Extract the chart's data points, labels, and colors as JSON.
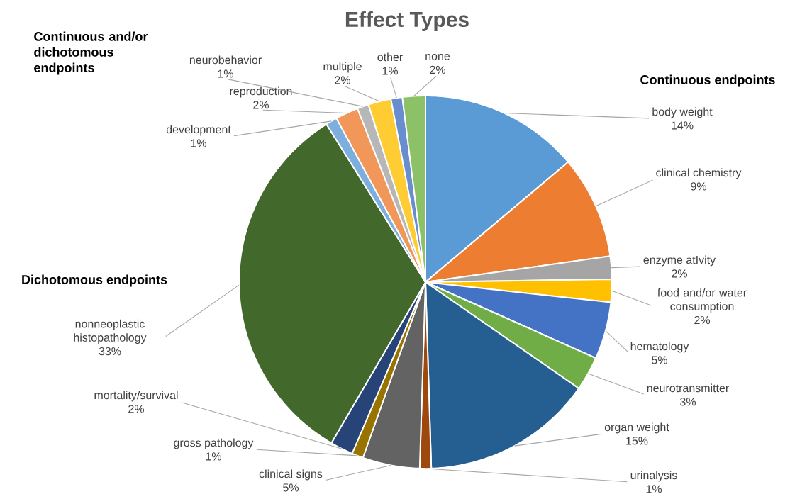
{
  "chart_data": {
    "type": "pie",
    "title": "Effect Types",
    "categories": [
      "body weight",
      "clinical chemistry",
      "enzyme atIvity",
      "food and/or water consumption",
      "hematology",
      "neurotransmitter",
      "organ weight",
      "urinalysis",
      "clinical signs",
      "gross pathology",
      "mortality/survival",
      "nonneoplastic histopathology",
      "development",
      "reproduction",
      "neurobehavior",
      "multiple",
      "other",
      "none"
    ],
    "values": [
      14,
      9,
      2,
      2,
      5,
      3,
      15,
      1,
      5,
      1,
      2,
      33,
      1,
      2,
      1,
      2,
      1,
      2
    ],
    "value_labels": [
      "14%",
      "9%",
      "2%",
      "2%",
      "5%",
      "3%",
      "15%",
      "1%",
      "5%",
      "1%",
      "2%",
      "33%",
      "1%",
      "2%",
      "1%",
      "2%",
      "1%",
      "2%"
    ],
    "colors": [
      "#5b9bd5",
      "#ed7d31",
      "#a5a5a5",
      "#ffc000",
      "#4472c4",
      "#70ad47",
      "#255e91",
      "#9e480e",
      "#636363",
      "#997300",
      "#264478",
      "#43682b",
      "#7cafdd",
      "#f1975a",
      "#b7b7b7",
      "#ffcd33",
      "#698ed0",
      "#8cc168"
    ],
    "annotations": [
      "Continuous endpoints",
      "Dichotomous endpoints",
      "Continuous and/or dichotomous endpoints"
    ]
  }
}
